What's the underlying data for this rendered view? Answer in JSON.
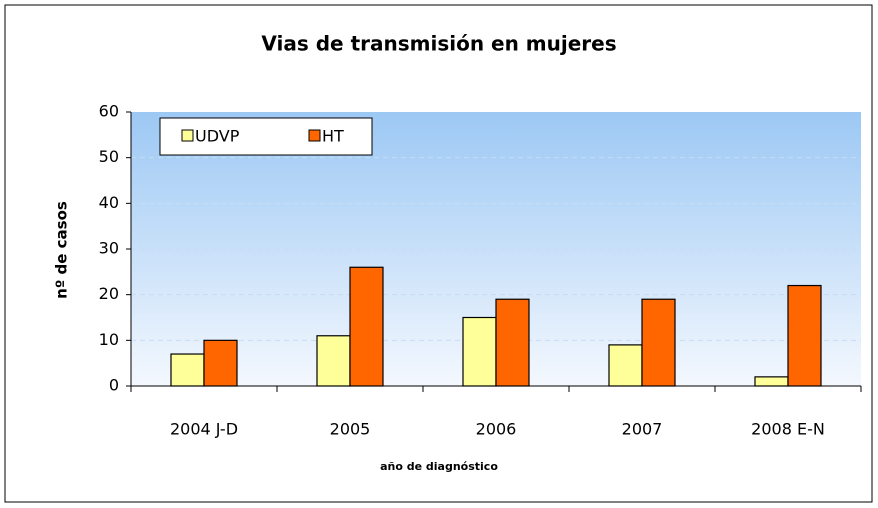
{
  "chart_data": {
    "type": "bar",
    "title": "Vias de transmisión en mujeres",
    "x_label": "año de diagnóstico",
    "y_label": "nº de casos",
    "categories": [
      "2004 J-D",
      "2005",
      "2006",
      "2007",
      "2008 E-N"
    ],
    "series": [
      {
        "name": "UDVP",
        "color": "#ffff99",
        "values": [
          7,
          11,
          15,
          9,
          2
        ]
      },
      {
        "name": "HT",
        "color": "#ff6600",
        "values": [
          10,
          26,
          19,
          19,
          22
        ]
      }
    ],
    "ylim": [
      0,
      60
    ],
    "yticks": [
      0,
      10,
      20,
      30,
      40,
      50,
      60
    ],
    "grid": true,
    "legend": "top-left"
  }
}
